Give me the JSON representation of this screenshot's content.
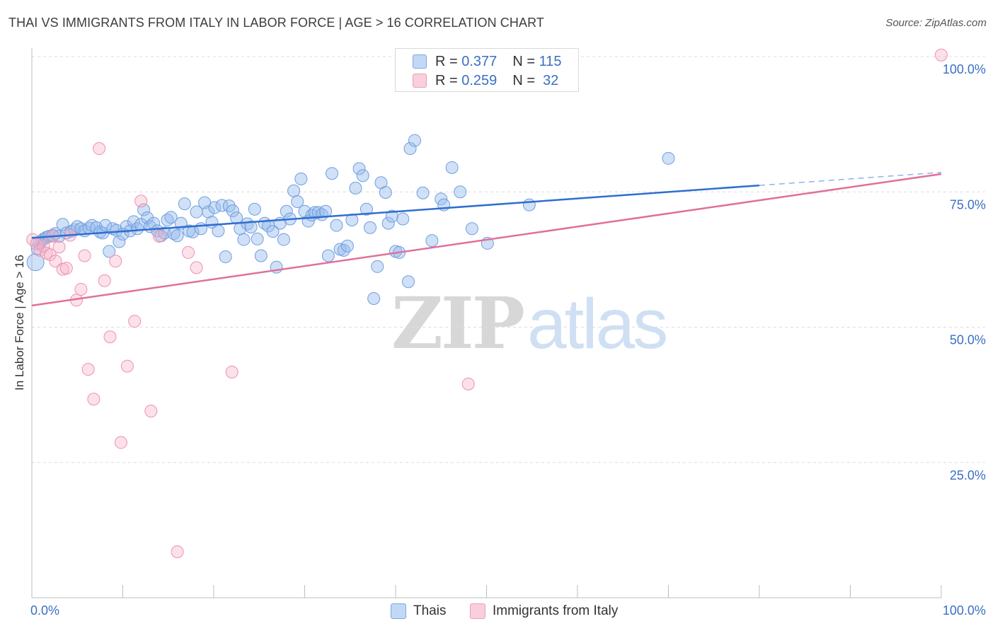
{
  "title": "THAI VS IMMIGRANTS FROM ITALY IN LABOR FORCE | AGE > 16 CORRELATION CHART",
  "source": "Source: ZipAtlas.com",
  "watermark": {
    "zip": "ZIP",
    "atlas": "atlas"
  },
  "legend_top": [
    {
      "r_label": "R =",
      "r_value": "0.377",
      "n_label": "N =",
      "n_value": "115"
    },
    {
      "r_label": "R =",
      "r_value": "0.259",
      "n_label": "N =",
      "n_value": "32"
    }
  ],
  "chart_data": {
    "type": "scatter",
    "title": "THAI VS IMMIGRANTS FROM ITALY IN LABOR FORCE | AGE > 16 CORRELATION CHART",
    "ylabel": "In Labor Force | Age > 16",
    "xlabel": "",
    "xlim": [
      0,
      100
    ],
    "ylim": [
      0,
      100
    ],
    "x_tick_labels": [
      "0.0%",
      "100.0%"
    ],
    "y_tick_labels": [
      "25.0%",
      "50.0%",
      "75.0%",
      "100.0%"
    ],
    "y_ticks": [
      25,
      50,
      75,
      100
    ],
    "grid": true,
    "legend_position": "bottom",
    "colors": {
      "thais": "#6f9fe0",
      "italy": "#f08fb0",
      "thais_line": "#2e6fcf",
      "italy_line": "#e0709a",
      "tick_label": "#3b6fc4"
    },
    "series": [
      {
        "name": "Thais",
        "r": 0.377,
        "n": 115,
        "trend": {
          "x0": 0,
          "y0": 66.5,
          "x1": 80,
          "y1": 76.2,
          "dashed_to_x": 100,
          "dashed_to_y": 78.6
        },
        "points": [
          [
            0.4,
            62
          ],
          [
            0.6,
            64.5
          ],
          [
            0.8,
            65.5
          ],
          [
            1.1,
            66
          ],
          [
            1.3,
            66.3
          ],
          [
            1.6,
            66.6
          ],
          [
            1.9,
            66.8
          ],
          [
            2.3,
            67
          ],
          [
            2.6,
            67.3
          ],
          [
            3.0,
            66.8
          ],
          [
            3.4,
            69
          ],
          [
            3.8,
            67.4
          ],
          [
            4.3,
            67.7
          ],
          [
            4.7,
            68
          ],
          [
            5.0,
            68.6
          ],
          [
            5.4,
            68.2
          ],
          [
            5.8,
            67.8
          ],
          [
            6.3,
            68.3
          ],
          [
            6.6,
            68.8
          ],
          [
            7.1,
            68.4
          ],
          [
            7.5,
            67.6
          ],
          [
            7.8,
            67.4
          ],
          [
            8.1,
            68.8
          ],
          [
            8.5,
            64
          ],
          [
            8.9,
            68.2
          ],
          [
            9.3,
            67.9
          ],
          [
            9.6,
            65.8
          ],
          [
            10.0,
            67.2
          ],
          [
            10.4,
            68.6
          ],
          [
            10.8,
            67.8
          ],
          [
            11.2,
            69.5
          ],
          [
            11.6,
            68.2
          ],
          [
            12.0,
            69
          ],
          [
            12.3,
            71.7
          ],
          [
            12.7,
            70.2
          ],
          [
            13.0,
            68.6
          ],
          [
            13.4,
            69.2
          ],
          [
            13.8,
            67.8
          ],
          [
            14.2,
            66.9
          ],
          [
            14.6,
            67.4
          ],
          [
            14.9,
            69.8
          ],
          [
            15.3,
            70.3
          ],
          [
            15.6,
            67.3
          ],
          [
            16.0,
            66.9
          ],
          [
            16.4,
            69.2
          ],
          [
            16.8,
            72.8
          ],
          [
            17.3,
            67.8
          ],
          [
            17.7,
            67.6
          ],
          [
            18.1,
            71.3
          ],
          [
            18.6,
            68.2
          ],
          [
            19.0,
            73
          ],
          [
            19.4,
            71.3
          ],
          [
            19.8,
            69.4
          ],
          [
            20.1,
            72.1
          ],
          [
            20.5,
            67.8
          ],
          [
            20.9,
            72.5
          ],
          [
            21.3,
            63
          ],
          [
            21.7,
            72.4
          ],
          [
            22.1,
            71.5
          ],
          [
            22.5,
            70.2
          ],
          [
            22.9,
            68.2
          ],
          [
            23.3,
            66.2
          ],
          [
            23.7,
            69.1
          ],
          [
            24.1,
            68.5
          ],
          [
            24.5,
            71.8
          ],
          [
            24.8,
            66.3
          ],
          [
            25.2,
            63.2
          ],
          [
            25.6,
            69.2
          ],
          [
            26.0,
            68.7
          ],
          [
            26.5,
            67.7
          ],
          [
            26.9,
            61.1
          ],
          [
            27.3,
            69.2
          ],
          [
            27.7,
            66.2
          ],
          [
            28.0,
            71.4
          ],
          [
            28.4,
            70
          ],
          [
            28.8,
            75.2
          ],
          [
            29.2,
            73.2
          ],
          [
            29.6,
            77.4
          ],
          [
            30.0,
            71.4
          ],
          [
            30.4,
            69.6
          ],
          [
            30.8,
            70.7
          ],
          [
            31.1,
            71.2
          ],
          [
            31.5,
            71.2
          ],
          [
            31.9,
            70.8
          ],
          [
            32.3,
            71.4
          ],
          [
            32.6,
            63.2
          ],
          [
            33.0,
            78.4
          ],
          [
            33.5,
            68.8
          ],
          [
            33.9,
            64.4
          ],
          [
            34.3,
            64.2
          ],
          [
            34.7,
            65
          ],
          [
            35.2,
            69.8
          ],
          [
            35.6,
            75.7
          ],
          [
            36.0,
            79.3
          ],
          [
            36.4,
            78
          ],
          [
            36.8,
            71.8
          ],
          [
            37.2,
            68.4
          ],
          [
            37.6,
            55.3
          ],
          [
            38.0,
            61.2
          ],
          [
            38.4,
            76.7
          ],
          [
            38.9,
            74.9
          ],
          [
            39.2,
            69.2
          ],
          [
            39.6,
            70.5
          ],
          [
            40.0,
            64
          ],
          [
            40.4,
            63.8
          ],
          [
            40.8,
            70
          ],
          [
            41.4,
            58.4
          ],
          [
            41.6,
            83
          ],
          [
            42.1,
            84.5
          ],
          [
            43.0,
            74.8
          ],
          [
            44.0,
            66
          ],
          [
            45.0,
            73.7
          ],
          [
            45.3,
            72.6
          ],
          [
            46.2,
            79.5
          ],
          [
            47.1,
            75
          ],
          [
            48.4,
            68.2
          ],
          [
            50.1,
            65.5
          ],
          [
            54.7,
            72.6
          ],
          [
            70.0,
            81.2
          ]
        ]
      },
      {
        "name": "Immigrants from Italy",
        "r": 0.259,
        "n": 32,
        "trend": {
          "x0": 0,
          "y0": 54,
          "x1": 100,
          "y1": 78.3
        },
        "points": [
          [
            0.1,
            66.2
          ],
          [
            0.5,
            65.4
          ],
          [
            0.9,
            64.2
          ],
          [
            1.3,
            65
          ],
          [
            1.6,
            63.7
          ],
          [
            2.0,
            63.4
          ],
          [
            2.3,
            66.8
          ],
          [
            2.6,
            62.2
          ],
          [
            3.0,
            64.8
          ],
          [
            3.4,
            60.7
          ],
          [
            3.8,
            60.9
          ],
          [
            4.2,
            67
          ],
          [
            4.9,
            55
          ],
          [
            5.4,
            57
          ],
          [
            5.8,
            63.2
          ],
          [
            6.2,
            42.2
          ],
          [
            6.8,
            36.7
          ],
          [
            7.4,
            83
          ],
          [
            8.0,
            58.6
          ],
          [
            8.6,
            48.2
          ],
          [
            9.2,
            62.2
          ],
          [
            9.8,
            28.7
          ],
          [
            10.5,
            42.8
          ],
          [
            11.3,
            51.1
          ],
          [
            12.0,
            73.3
          ],
          [
            13.1,
            34.5
          ],
          [
            14.0,
            66.8
          ],
          [
            16.0,
            8.5
          ],
          [
            17.2,
            63.8
          ],
          [
            18.1,
            61
          ],
          [
            22.0,
            41.7
          ],
          [
            48.0,
            39.5
          ],
          [
            100.0,
            100.3
          ]
        ]
      }
    ]
  }
}
